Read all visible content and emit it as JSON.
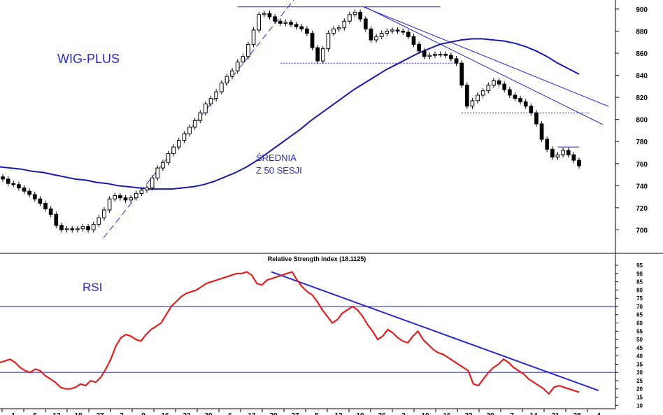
{
  "chart_data": [
    {
      "type": "candlestick",
      "name": "",
      "title_label": "WIG-PLUS",
      "annotation": "ŚREDNIA Z 50 SESJI",
      "annotation_lines": [
        "ŚREDNIA",
        "Z 50 SESJI"
      ],
      "y_ticks": [
        700,
        720,
        740,
        760,
        780,
        800,
        820,
        840,
        860,
        880,
        900
      ],
      "ylim": [
        680,
        905
      ],
      "colors": {
        "candles": "#000000",
        "moving_average": "#1a1aaa",
        "trendlines": "#2a2acc"
      },
      "closes": [
        746,
        742,
        741,
        738,
        735,
        732,
        728,
        724,
        719,
        714,
        704,
        700,
        701,
        700,
        701,
        703,
        700,
        705,
        711,
        718,
        728,
        731,
        729,
        727,
        729,
        733,
        736,
        738,
        747,
        756,
        761,
        769,
        775,
        781,
        787,
        793,
        799,
        806,
        814,
        819,
        825,
        833,
        839,
        844,
        852,
        857,
        868,
        881,
        895,
        896,
        893,
        889,
        887,
        888,
        886,
        884,
        882,
        878,
        865,
        853,
        864,
        878,
        882,
        883,
        889,
        895,
        897,
        891,
        882,
        872,
        875,
        878,
        880,
        881,
        880,
        879,
        875,
        868,
        862,
        857,
        858,
        859,
        859,
        858,
        855,
        851,
        831,
        812,
        817,
        822,
        826,
        831,
        835,
        832,
        827,
        822,
        819,
        816,
        812,
        806,
        796,
        782,
        773,
        766,
        768,
        772,
        768,
        763,
        758
      ],
      "moving_average_approx": [
        757,
        756,
        755,
        753,
        752,
        750,
        748,
        746,
        745,
        743,
        742,
        740,
        739,
        738,
        737,
        737,
        737,
        738,
        739,
        741,
        744,
        748,
        752,
        757,
        763,
        770,
        777,
        784,
        791,
        799,
        806,
        813,
        820,
        827,
        833,
        839,
        845,
        850,
        855,
        860,
        864,
        868,
        870,
        872,
        873,
        873,
        872,
        871,
        869,
        866,
        862,
        857,
        851,
        846,
        841
      ],
      "moving_average_start_index": 0,
      "moving_average_step": 2,
      "reference_levels": [
        {
          "name": "top",
          "value": 902
        },
        {
          "name": "support",
          "value": 851
        },
        {
          "name": "mid-support",
          "value": 806
        },
        {
          "name": "recent",
          "value": 775
        }
      ],
      "trendlines": [
        {
          "name": "rising",
          "from": [
            0,
            694
          ],
          "to": [
            44,
            900
          ]
        },
        {
          "name": "falling-1",
          "from": [
            65,
            900
          ],
          "to": [
            115,
            801
          ]
        },
        {
          "name": "falling-2",
          "from": [
            66,
            900
          ],
          "to": [
            116,
            787
          ]
        }
      ]
    },
    {
      "type": "line",
      "title": "Relative Strength Index (18.1125)",
      "label": "RSI",
      "y_ticks": [
        10,
        15,
        20,
        25,
        30,
        35,
        40,
        45,
        50,
        55,
        60,
        65,
        70,
        75,
        80,
        85,
        90,
        95
      ],
      "ylim": [
        8,
        98
      ],
      "horizontal_lines": [
        70,
        30
      ],
      "colors": {
        "rsi": "#e02020",
        "levels": "#1a1aaa",
        "trendline": "#2a2acc"
      },
      "values": [
        36,
        37,
        38,
        36,
        33,
        31,
        30,
        32,
        31,
        28,
        26,
        24,
        21,
        20,
        20,
        21,
        23,
        22,
        25,
        24,
        27,
        32,
        38,
        46,
        51,
        53,
        52,
        50,
        49,
        53,
        56,
        58,
        60,
        65,
        70,
        73,
        76,
        78,
        79,
        80,
        82,
        84,
        85,
        86,
        87,
        88,
        89,
        90,
        90,
        91,
        89,
        84,
        83,
        86,
        87,
        88,
        89,
        90,
        91,
        86,
        82,
        79,
        77,
        73,
        68,
        64,
        60,
        62,
        66,
        68,
        70,
        68,
        64,
        59,
        55,
        50,
        52,
        56,
        54,
        51,
        49,
        48,
        52,
        55,
        50,
        47,
        44,
        42,
        41,
        39,
        37,
        35,
        33,
        31,
        23,
        22,
        26,
        30,
        33,
        35,
        38,
        36,
        33,
        31,
        29,
        26,
        24,
        22,
        20,
        17,
        21,
        22,
        21,
        20,
        19,
        18
      ],
      "trendline": {
        "from": [
          0,
          91
        ],
        "to": [
          1,
          19
        ]
      }
    }
  ],
  "x_axis": {
    "labels": [
      "1",
      "5",
      "12",
      "19",
      "27",
      "2",
      "9",
      "16",
      "23",
      "30",
      "6",
      "13",
      "20",
      "27",
      "5",
      "12",
      "19",
      "26",
      "2",
      "10",
      "16",
      "23",
      "30",
      "7",
      "14",
      "21",
      "28",
      "4"
    ]
  }
}
